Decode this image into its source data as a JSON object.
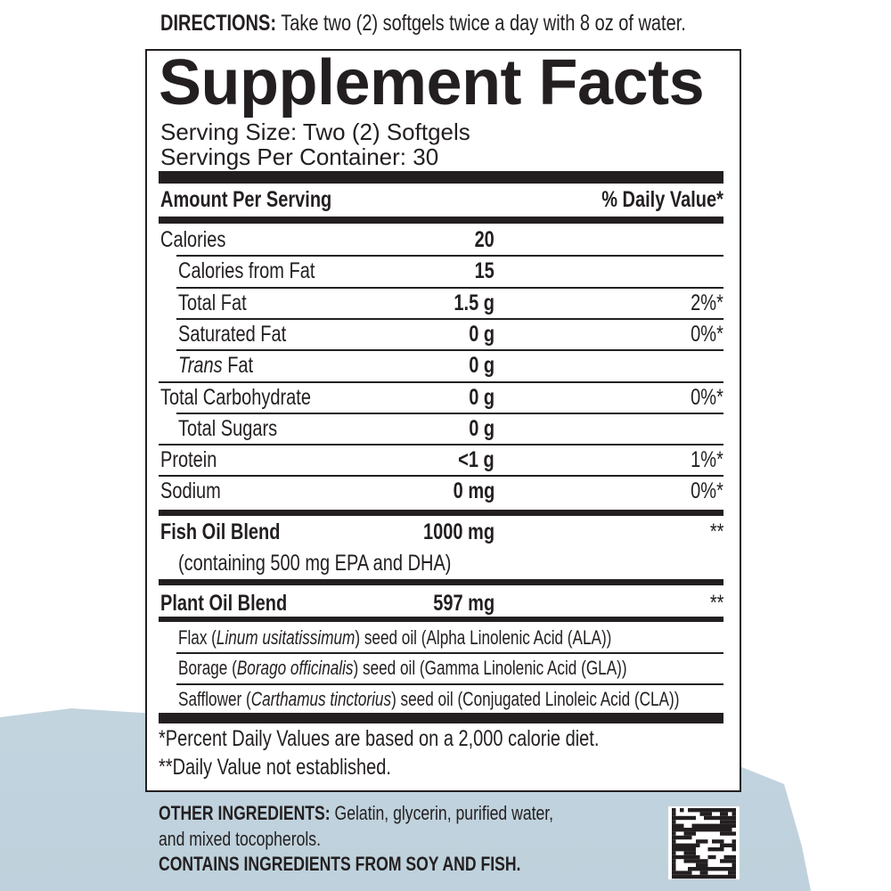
{
  "directions": {
    "label": "DIRECTIONS:",
    "text": " Take two (2) softgels twice a day with 8 oz of water."
  },
  "title": "Supplement Facts",
  "serving_size": "Serving Size: Two (2) Softgels",
  "servings_per_container": "Servings Per Container: 30",
  "header": {
    "amount": "Amount Per Serving",
    "dv": "% Daily Value*"
  },
  "rows": [
    {
      "label": "Calories",
      "amount": "20",
      "dv": "",
      "indent": false
    },
    {
      "label": "Calories from Fat",
      "amount": "15",
      "dv": "",
      "indent": true
    },
    {
      "label": "Total Fat",
      "amount": "1.5 g",
      "dv": "2%*",
      "indent": true
    },
    {
      "label": "Saturated Fat",
      "amount": "0 g",
      "dv": "0%*",
      "indent": true
    },
    {
      "label_italic": "Trans",
      "label": " Fat",
      "amount": "0 g",
      "dv": "",
      "indent": true
    },
    {
      "label": "Total Carbohydrate",
      "amount": "0 g",
      "dv": "0%*",
      "indent": false
    },
    {
      "label": "Total Sugars",
      "amount": "0 g",
      "dv": "",
      "indent": true
    },
    {
      "label": "Protein",
      "amount": "<1 g",
      "dv": "1%*",
      "indent": false
    },
    {
      "label": "Sodium",
      "amount": "0 mg",
      "dv": "0%*",
      "indent": false
    }
  ],
  "fish": {
    "label": "Fish Oil Blend",
    "amount": "1000 mg",
    "dv": "**",
    "note": "(containing 500 mg EPA and DHA)"
  },
  "plant": {
    "label": "Plant Oil Blend",
    "amount": "597 mg",
    "dv": "**",
    "items": [
      [
        "Flax (",
        "Linum usitatissimum",
        ") seed oil (Alpha Linolenic Acid (ALA))"
      ],
      [
        "Borage (",
        "Borago officinalis",
        ") seed oil (Gamma Linolenic Acid (GLA))"
      ],
      [
        "Safflower (",
        "Carthamus tinctorius",
        ") seed oil (Conjugated Linoleic Acid (CLA))"
      ]
    ]
  },
  "footnotes": [
    "*Percent Daily Values are based on a 2,000 calorie diet.",
    "**Daily Value not established."
  ],
  "other": {
    "label": "OTHER INGREDIENTS:",
    "text": " Gelatin, glycerin, purified water,",
    "text2": "and mixed tocopherols.",
    "allergen": "CONTAINS INGREDIENTS FROM SOY AND FISH."
  },
  "colors": {
    "ink": "#231f20",
    "background_wash": "#c9d9e3"
  },
  "icons": {
    "code": "datamatrix-barcode"
  }
}
